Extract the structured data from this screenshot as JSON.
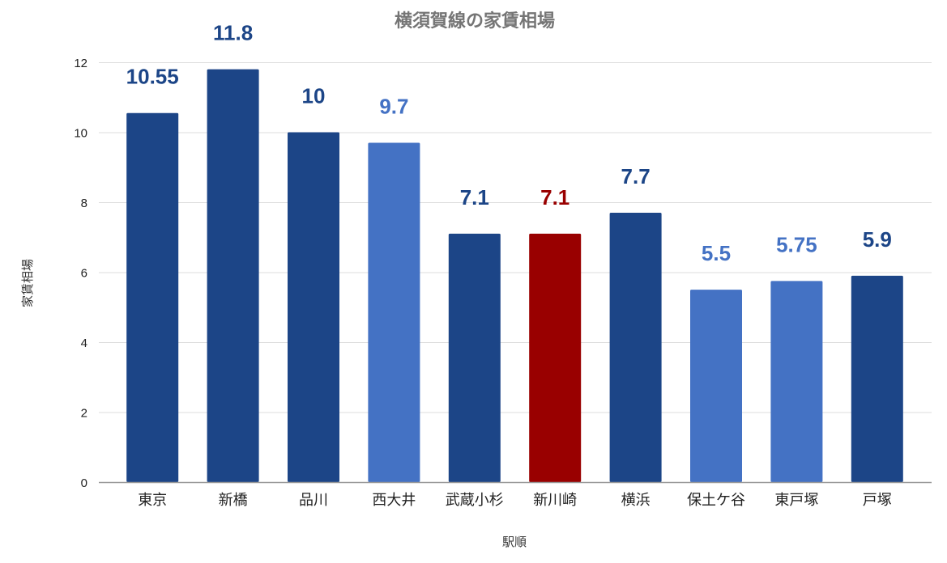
{
  "chart_data": {
    "type": "bar",
    "title": "横須賀線の家賃相場",
    "xlabel": "駅順",
    "ylabel": "家賃相場",
    "ylim": [
      0,
      12
    ],
    "yticks": [
      0,
      2,
      4,
      6,
      8,
      10,
      12
    ],
    "grid": true,
    "legend": "none",
    "categories": [
      "東京",
      "新橋",
      "品川",
      "西大井",
      "武蔵小杉",
      "新川崎",
      "横浜",
      "保土ケ谷",
      "東戸塚",
      "戸塚"
    ],
    "values": [
      10.55,
      11.8,
      10,
      9.7,
      7.1,
      7.1,
      7.7,
      5.5,
      5.75,
      5.9
    ],
    "data_labels": [
      "10.55",
      "11.8",
      "10",
      "9.7",
      "7.1",
      "7.1",
      "7.7",
      "5.5",
      "5.75",
      "5.9"
    ],
    "bar_colors": [
      "#1c4587",
      "#1c4587",
      "#1c4587",
      "#4472c4",
      "#1c4587",
      "#990000",
      "#1c4587",
      "#4472c4",
      "#4472c4",
      "#1c4587"
    ]
  }
}
